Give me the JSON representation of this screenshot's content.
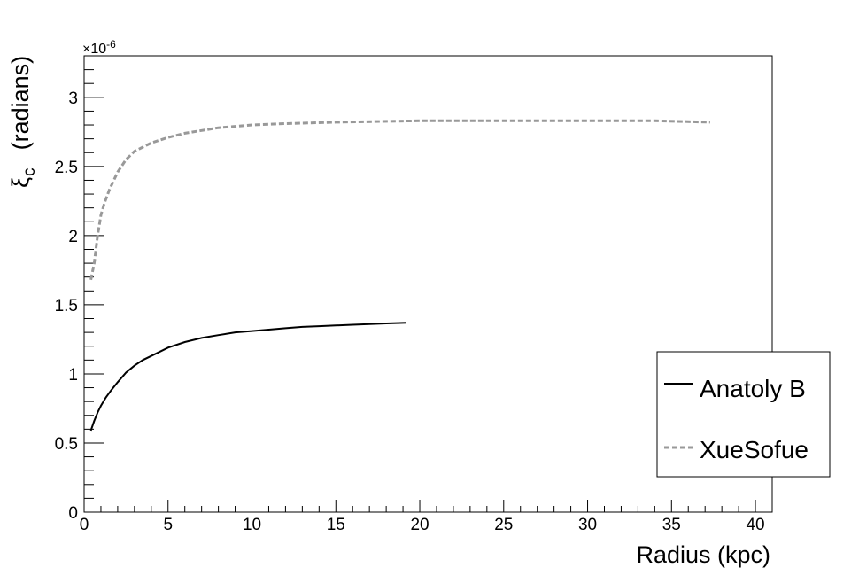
{
  "chart_data": {
    "type": "line",
    "xlabel": "Radius (kpc)",
    "ylabel_symbol": "ξ",
    "ylabel_subscript": "c",
    "ylabel_unit": "(radians)",
    "y_multiplier": "×10",
    "y_multiplier_exp": "-6",
    "xlim": [
      0,
      41
    ],
    "ylim": [
      0,
      3.3
    ],
    "xticks": [
      "0",
      "5",
      "10",
      "15",
      "20",
      "25",
      "30",
      "35",
      "40"
    ],
    "yticks": [
      "0",
      "0.5",
      "1",
      "1.5",
      "2",
      "2.5",
      "3"
    ],
    "legend_position": "bottom-right",
    "series": [
      {
        "name": "Anatoly B",
        "color": "#000000",
        "style": "solid",
        "x": [
          0.4,
          0.6,
          0.8,
          1.0,
          1.3,
          1.6,
          2.0,
          2.5,
          3.0,
          3.5,
          4.0,
          5.0,
          6.0,
          7.0,
          8.0,
          9.0,
          10.0,
          11.0,
          12.0,
          13.0,
          14.0,
          15.0,
          16.0,
          17.0,
          18.0,
          19.2
        ],
        "y": [
          0.59,
          0.66,
          0.72,
          0.77,
          0.83,
          0.88,
          0.94,
          1.01,
          1.06,
          1.1,
          1.13,
          1.19,
          1.23,
          1.26,
          1.28,
          1.3,
          1.31,
          1.32,
          1.33,
          1.34,
          1.345,
          1.35,
          1.355,
          1.36,
          1.365,
          1.37
        ]
      },
      {
        "name": "XueSofue",
        "color": "#999999",
        "style": "dashed",
        "x": [
          0.4,
          0.6,
          0.8,
          1.0,
          1.2,
          1.5,
          2.0,
          2.5,
          3.0,
          4.0,
          5.0,
          6.0,
          7.0,
          8.0,
          9.0,
          10.0,
          12.0,
          15.0,
          20.0,
          25.0,
          30.0,
          34.0,
          37.3
        ],
        "y": [
          1.68,
          1.8,
          2.0,
          2.15,
          2.23,
          2.33,
          2.46,
          2.55,
          2.61,
          2.67,
          2.71,
          2.74,
          2.76,
          2.78,
          2.79,
          2.8,
          2.81,
          2.82,
          2.83,
          2.83,
          2.83,
          2.83,
          2.82
        ]
      }
    ]
  }
}
